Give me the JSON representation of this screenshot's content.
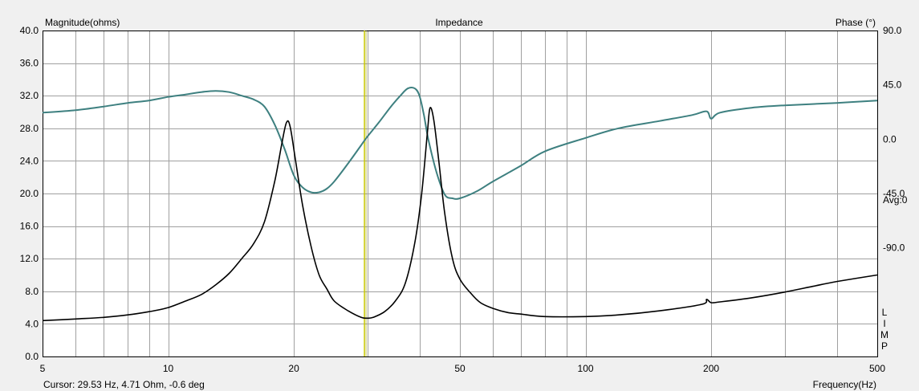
{
  "chart_data": {
    "type": "line",
    "title": "Impedance",
    "ylabel_left": "Magnitude(ohms)",
    "ylabel_right": "Phase (°)",
    "xlabel": "Frequency(Hz)",
    "x_scale": "log",
    "xlim": [
      5,
      500
    ],
    "ylim_left": [
      0,
      40
    ],
    "ylim_right": [
      -180,
      90
    ],
    "grid": true,
    "x_tick_labels": [
      {
        "value": 5,
        "label": "5"
      },
      {
        "value": 10,
        "label": "10"
      },
      {
        "value": 20,
        "label": "20"
      },
      {
        "value": 50,
        "label": "50"
      },
      {
        "value": 100,
        "label": "100"
      },
      {
        "value": 200,
        "label": "200"
      },
      {
        "value": 500,
        "label": "500"
      }
    ],
    "x_minor_grid": [
      6,
      7,
      8,
      9,
      30,
      40,
      60,
      70,
      80,
      90,
      300,
      400
    ],
    "y_left_ticks": [
      {
        "value": 0,
        "label": "0.0"
      },
      {
        "value": 4,
        "label": "4.0"
      },
      {
        "value": 8,
        "label": "8.0"
      },
      {
        "value": 12,
        "label": "12.0"
      },
      {
        "value": 16,
        "label": "16.0"
      },
      {
        "value": 20,
        "label": "20.0"
      },
      {
        "value": 24,
        "label": "24.0"
      },
      {
        "value": 28,
        "label": "28.0"
      },
      {
        "value": 32,
        "label": "32.0"
      },
      {
        "value": 36,
        "label": "36.0"
      },
      {
        "value": 40,
        "label": "40.0"
      }
    ],
    "y_right_ticks": [
      {
        "value": 90,
        "label": "90.0"
      },
      {
        "value": 45,
        "label": "45.0"
      },
      {
        "value": 0,
        "label": "0.0"
      },
      {
        "value": -45,
        "label": "-45.0"
      },
      {
        "value": -90,
        "label": "-90.0"
      }
    ],
    "right_avg_label": "Avg:0",
    "limp_label": [
      "L",
      "I",
      "M",
      "P"
    ],
    "cursor": {
      "x": 29.53,
      "color": "#c8c800",
      "label": "Cursor: 29.53 Hz, 4.71 Ohm, -0.6 deg"
    },
    "series": [
      {
        "name": "Magnitude",
        "axis": "left",
        "color": "#000000",
        "points": [
          [
            5,
            4.4
          ],
          [
            6,
            4.6
          ],
          [
            7,
            4.8
          ],
          [
            8,
            5.1
          ],
          [
            9,
            5.5
          ],
          [
            10,
            6.0
          ],
          [
            11,
            6.8
          ],
          [
            12,
            7.6
          ],
          [
            13,
            8.8
          ],
          [
            14,
            10.2
          ],
          [
            15,
            12.0
          ],
          [
            16,
            13.8
          ],
          [
            17,
            16.5
          ],
          [
            18,
            21.5
          ],
          [
            18.7,
            26.0
          ],
          [
            19.2,
            28.7
          ],
          [
            19.6,
            28.2
          ],
          [
            20.2,
            24.0
          ],
          [
            21,
            18.5
          ],
          [
            22,
            13.5
          ],
          [
            23,
            10.0
          ],
          [
            24,
            8.3
          ],
          [
            25,
            6.8
          ],
          [
            27,
            5.6
          ],
          [
            29,
            4.8
          ],
          [
            30,
            4.7
          ],
          [
            31,
            4.8
          ],
          [
            33,
            5.5
          ],
          [
            35,
            6.8
          ],
          [
            37,
            9.0
          ],
          [
            39,
            14.0
          ],
          [
            40.5,
            20.0
          ],
          [
            41.8,
            27.5
          ],
          [
            42.4,
            30.5
          ],
          [
            43.3,
            29.0
          ],
          [
            44.5,
            24.0
          ],
          [
            46,
            17.5
          ],
          [
            48,
            12.0
          ],
          [
            50,
            9.5
          ],
          [
            53,
            7.8
          ],
          [
            56,
            6.6
          ],
          [
            60,
            5.9
          ],
          [
            65,
            5.4
          ],
          [
            70,
            5.2
          ],
          [
            80,
            4.9
          ],
          [
            100,
            4.9
          ],
          [
            120,
            5.1
          ],
          [
            150,
            5.6
          ],
          [
            190,
            6.4
          ],
          [
            195,
            7.0
          ],
          [
            200,
            6.6
          ],
          [
            210,
            6.7
          ],
          [
            250,
            7.2
          ],
          [
            300,
            7.9
          ],
          [
            350,
            8.6
          ],
          [
            400,
            9.2
          ],
          [
            500,
            10.0
          ]
        ]
      },
      {
        "name": "Phase",
        "axis": "right",
        "color": "#3e8080",
        "points": [
          [
            5,
            22
          ],
          [
            6,
            24
          ],
          [
            7,
            27
          ],
          [
            8,
            30
          ],
          [
            9,
            32
          ],
          [
            10,
            35
          ],
          [
            11,
            37
          ],
          [
            12,
            39
          ],
          [
            13,
            40
          ],
          [
            14,
            39
          ],
          [
            15,
            36
          ],
          [
            16,
            33
          ],
          [
            17,
            27
          ],
          [
            18,
            12
          ],
          [
            19,
            -8
          ],
          [
            20,
            -30
          ],
          [
            21,
            -40
          ],
          [
            22,
            -44
          ],
          [
            23,
            -44
          ],
          [
            24,
            -41
          ],
          [
            25,
            -35
          ],
          [
            27,
            -20
          ],
          [
            29,
            -5
          ],
          [
            30,
            2
          ],
          [
            32,
            14
          ],
          [
            34,
            26
          ],
          [
            36,
            36
          ],
          [
            37.5,
            42
          ],
          [
            39,
            42
          ],
          [
            40,
            36
          ],
          [
            41,
            20
          ],
          [
            42,
            0
          ],
          [
            44,
            -28
          ],
          [
            46,
            -46
          ],
          [
            48,
            -49
          ],
          [
            50,
            -49
          ],
          [
            55,
            -43
          ],
          [
            60,
            -35
          ],
          [
            70,
            -22
          ],
          [
            80,
            -10
          ],
          [
            100,
            1
          ],
          [
            120,
            9
          ],
          [
            150,
            15
          ],
          [
            180,
            20
          ],
          [
            195,
            23
          ],
          [
            200,
            17
          ],
          [
            210,
            22
          ],
          [
            250,
            26
          ],
          [
            300,
            28
          ],
          [
            400,
            30
          ],
          [
            500,
            32
          ]
        ]
      }
    ]
  }
}
